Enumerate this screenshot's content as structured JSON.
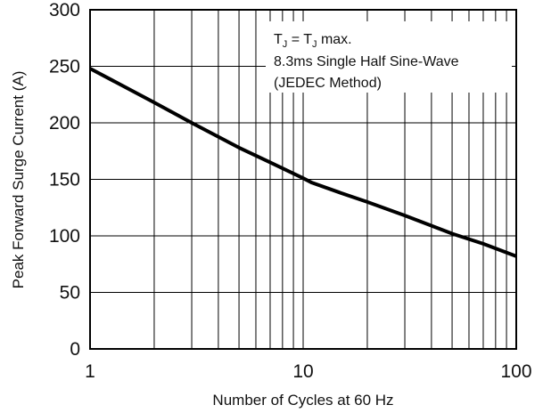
{
  "chart_data": {
    "type": "line",
    "title": "",
    "xlabel": "Number of Cycles at 60 Hz",
    "ylabel": "Peak Forward Surge Current (A)",
    "x_scale": "log",
    "xlim": [
      1,
      100
    ],
    "ylim": [
      0,
      300
    ],
    "x_ticks": [
      1,
      10,
      100
    ],
    "x_tick_labels": [
      "1",
      "10",
      "100"
    ],
    "y_ticks": [
      0,
      50,
      100,
      150,
      200,
      250,
      300
    ],
    "y_tick_labels": [
      "0",
      "50",
      "100",
      "150",
      "200",
      "250",
      "300"
    ],
    "grid": true,
    "series": [
      {
        "x": [
          1,
          2,
          3,
          5,
          7,
          10,
          11,
          15,
          20,
          30,
          50,
          70,
          100
        ],
        "y": [
          248,
          218,
          200,
          178,
          165,
          151,
          147,
          138,
          130,
          118,
          102,
          93,
          82
        ]
      }
    ],
    "annotation": {
      "line1": {
        "a": "T",
        "a_sub": "J",
        "mid": " = T",
        "b_sub": "J",
        "end": " max."
      },
      "line2": "8.3ms Single Half Sine-Wave",
      "line3": "(JEDEC Method)"
    }
  }
}
